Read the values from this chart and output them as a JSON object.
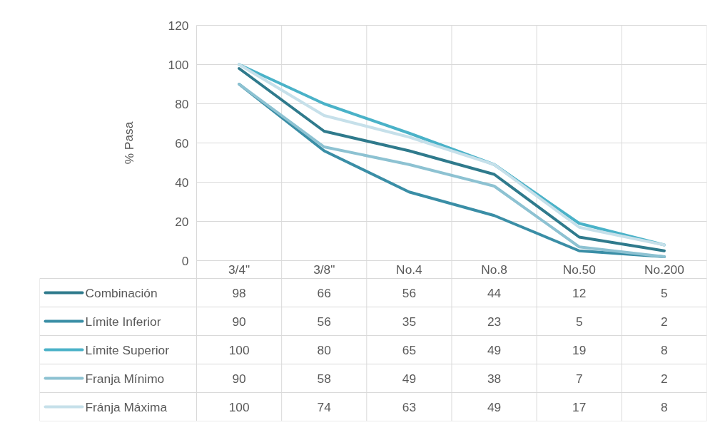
{
  "chart_data": {
    "type": "line",
    "ylabel": "% Pasa",
    "categories": [
      "3/4\"",
      "3/8\"",
      "No.4",
      "No.8",
      "No.50",
      "No.200"
    ],
    "ylim": [
      0,
      120
    ],
    "yticks": [
      0,
      20,
      40,
      60,
      80,
      100,
      120
    ],
    "grid": true,
    "legend": "bottom",
    "data_labels": true,
    "series": [
      {
        "name": "Combinación",
        "color": "#2f7a8c",
        "values": [
          98,
          66,
          56,
          44,
          12,
          5
        ]
      },
      {
        "name": "Límite Inferior",
        "color": "#3a8ea6",
        "values": [
          90,
          56,
          35,
          23,
          5,
          2
        ]
      },
      {
        "name": "Límite Superior",
        "color": "#4ab2c8",
        "values": [
          100,
          80,
          65,
          49,
          19,
          8
        ]
      },
      {
        "name": "Franja Mínimo",
        "color": "#8dc2d2",
        "values": [
          90,
          58,
          49,
          38,
          7,
          2
        ]
      },
      {
        "name": "Fránja Máxima",
        "color": "#c6e0ea",
        "values": [
          100,
          74,
          63,
          49,
          17,
          8
        ]
      }
    ]
  }
}
